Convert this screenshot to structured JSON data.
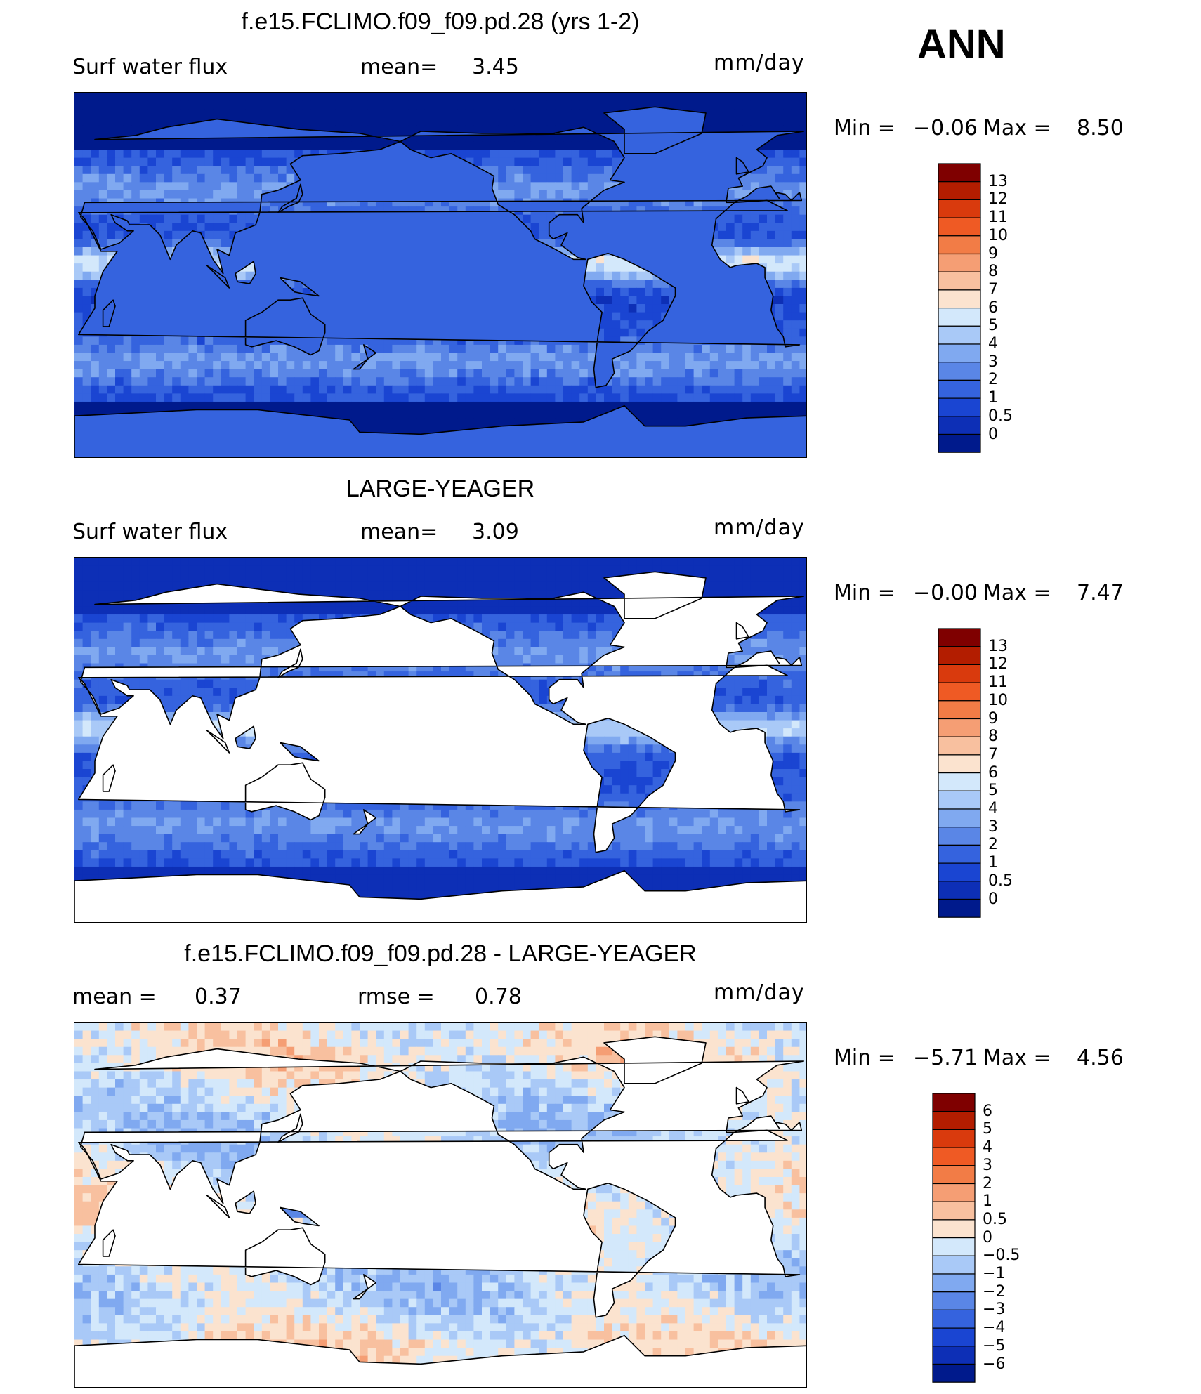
{
  "season": "ANN",
  "panels": [
    {
      "title": "f.e15.FCLIMO.f09_f09.pd.28 (yrs 1-2)",
      "left_label": "Surf  water  flux",
      "mid_label": "mean=",
      "mid_value": "3.45",
      "right_label": "",
      "right_value": "",
      "units": "mm/day",
      "min_label": "Min  =",
      "min_value": "−0.06",
      "max_label": "Max  =",
      "max_value": "8.50",
      "colorbar": {
        "labels": [
          "13",
          "12",
          "11",
          "10",
          "9",
          "8",
          "7",
          "6",
          "5",
          "4",
          "3",
          "2",
          "1",
          "0.5",
          "0"
        ],
        "colors": [
          "#7f0000",
          "#b31d00",
          "#d93a0d",
          "#ef5a24",
          "#f27c46",
          "#f59e74",
          "#f8c09f",
          "#fbe3cf",
          "#d3e8fb",
          "#a9c9f7",
          "#80a9f0",
          "#5a86e6",
          "#3563de",
          "#1a45d2",
          "#0d2fb6",
          "#001a8c"
        ]
      },
      "map": {
        "type": "full",
        "palette": [
          "#001a8c",
          "#0d2fb6",
          "#1a45d2",
          "#3563de",
          "#5a86e6",
          "#80a9f0",
          "#a9c9f7",
          "#d3e8fb",
          "#fbe3cf"
        ]
      }
    },
    {
      "title": "LARGE-YEAGER",
      "left_label": "Surf  water  flux",
      "mid_label": "mean=",
      "mid_value": "3.09",
      "right_label": "",
      "right_value": "",
      "units": "mm/day",
      "min_label": "Min  =",
      "min_value": "−0.00",
      "max_label": "Max  =",
      "max_value": "7.47",
      "colorbar": {
        "labels": [
          "13",
          "12",
          "11",
          "10",
          "9",
          "8",
          "7",
          "6",
          "5",
          "4",
          "3",
          "2",
          "1",
          "0.5",
          "0"
        ],
        "colors": [
          "#7f0000",
          "#b31d00",
          "#d93a0d",
          "#ef5a24",
          "#f27c46",
          "#f59e74",
          "#f8c09f",
          "#fbe3cf",
          "#d3e8fb",
          "#a9c9f7",
          "#80a9f0",
          "#5a86e6",
          "#3563de",
          "#1a45d2",
          "#0d2fb6",
          "#001a8c"
        ]
      },
      "map": {
        "type": "ocean",
        "palette": [
          "#0d2fb6",
          "#1a45d2",
          "#3563de",
          "#5a86e6",
          "#80a9f0",
          "#a9c9f7",
          "#d3e8fb"
        ]
      }
    },
    {
      "title": "f.e15.FCLIMO.f09_f09.pd.28 - LARGE-YEAGER",
      "left_label": "mean  =",
      "mid_label": "0.37",
      "mid_value": "",
      "right_label": "rmse  =",
      "right_value": "0.78",
      "units": "mm/day",
      "min_label": "Min  =",
      "min_value": "−5.71",
      "max_label": "Max  =",
      "max_value": "4.56",
      "colorbar": {
        "labels": [
          "6",
          "5",
          "4",
          "3",
          "2",
          "1",
          "0.5",
          "0",
          "−0.5",
          "−1",
          "−2",
          "−3",
          "−4",
          "−5",
          "−6"
        ],
        "colors": [
          "#7f0000",
          "#b31d00",
          "#d93a0d",
          "#ef5a24",
          "#f27c46",
          "#f59e74",
          "#f8c09f",
          "#fbe3cf",
          "#d3e8fb",
          "#a9c9f7",
          "#80a9f0",
          "#5a86e6",
          "#3563de",
          "#1a45d2",
          "#0d2fb6",
          "#001a8c"
        ]
      },
      "map": {
        "type": "diff",
        "palette": [
          "#5a86e6",
          "#80a9f0",
          "#a9c9f7",
          "#d3e8fb",
          "#fbe3cf",
          "#f8c09f",
          "#f59e74",
          "#f27c46"
        ]
      }
    }
  ]
}
